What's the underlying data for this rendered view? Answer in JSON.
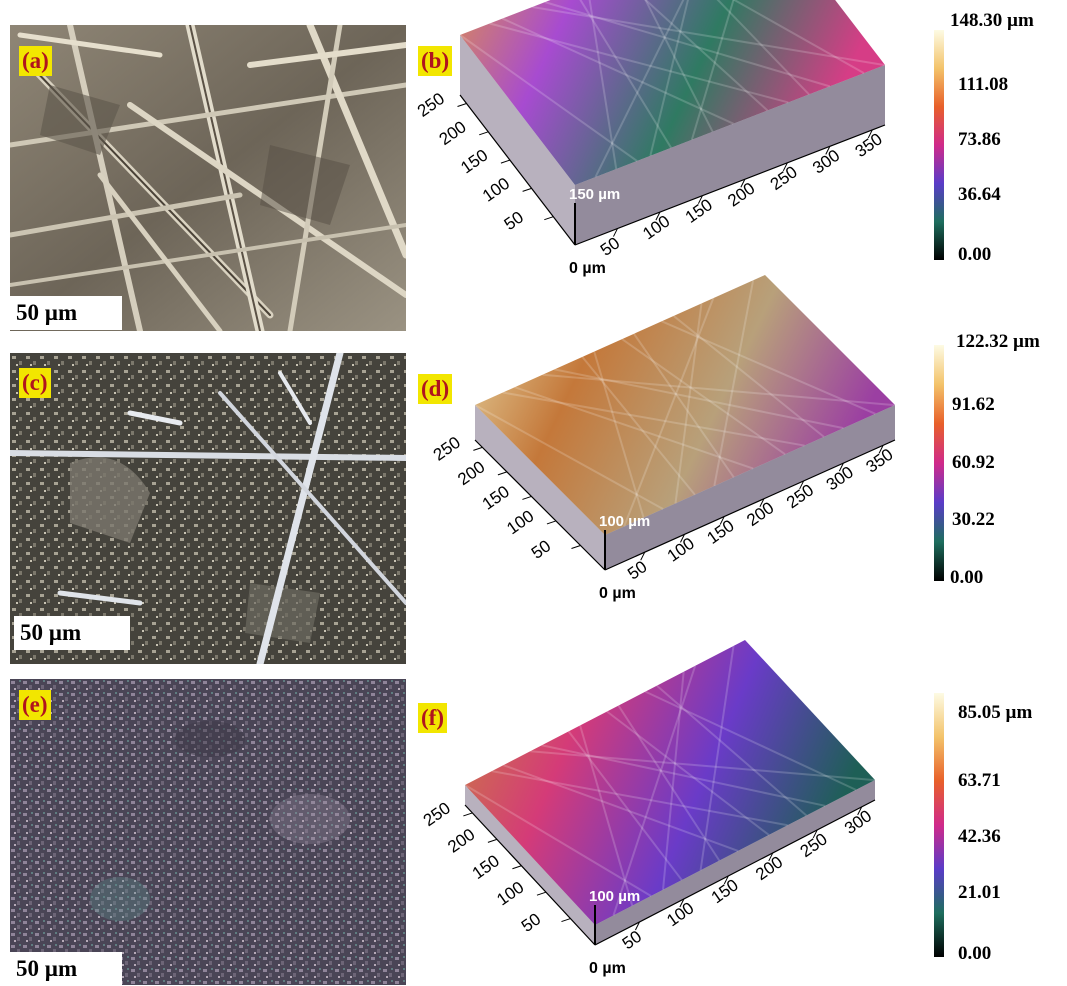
{
  "panels": [
    {
      "label": "(a)",
      "scale": "50 µm",
      "kind": "fibers"
    },
    {
      "label": "(b)",
      "z_label": "150 µm",
      "origin": "0  µm",
      "x_ticks": [
        "50",
        "100",
        "150",
        "200",
        "250",
        "300",
        "350"
      ],
      "y_ticks": [
        "50",
        "100",
        "150",
        "200",
        "250"
      ],
      "colorbar": [
        "148.30 µm",
        "111.08",
        "73.86",
        "36.64",
        "0.00"
      ]
    },
    {
      "label": "(c)",
      "scale": "50 µm",
      "kind": "mixed"
    },
    {
      "label": "(d)",
      "z_label": "100 µm",
      "origin": "0  µm",
      "x_ticks": [
        "50",
        "100",
        "150",
        "200",
        "250",
        "300",
        "350"
      ],
      "y_ticks": [
        "50",
        "100",
        "150",
        "200",
        "250"
      ],
      "colorbar": [
        "122.32 µm",
        "91.62",
        "60.92",
        "30.22",
        "0.00"
      ]
    },
    {
      "label": "(e)",
      "scale": "50 µm",
      "kind": "granular"
    },
    {
      "label": "(f)",
      "z_label": "100 µm",
      "origin": "0  µm",
      "x_ticks": [
        "50",
        "100",
        "150",
        "200",
        "250",
        "300"
      ],
      "y_ticks": [
        "50",
        "100",
        "150",
        "200",
        "250"
      ],
      "colorbar": [
        "85.05 µm",
        "63.71",
        "42.36",
        "21.01",
        "0.00"
      ]
    }
  ],
  "colors": {
    "label_bg": "#f2e600",
    "label_text": "#b0141e",
    "colormap": [
      "#000000",
      "#1e6e5e",
      "#5a3cc8",
      "#d02a8a",
      "#e8602a",
      "#f3c36a",
      "#fdfbe4"
    ]
  }
}
